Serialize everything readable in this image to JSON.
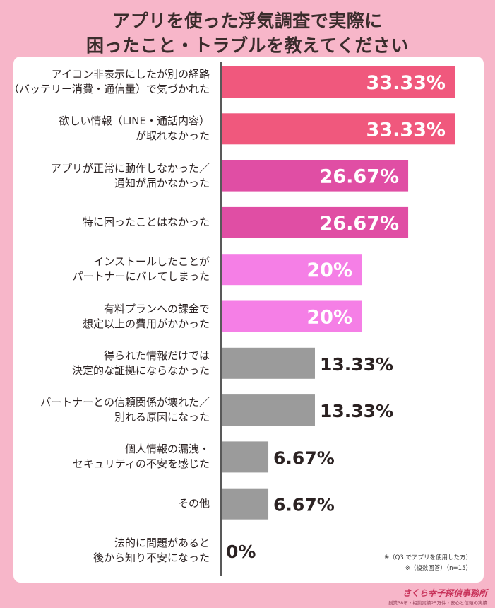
{
  "title": {
    "line1": "アプリを使った浮気調査で実際に",
    "line2": "困ったこと・トラブルを教えてください"
  },
  "chart_data": {
    "type": "bar",
    "orientation": "horizontal",
    "xlim": [
      0,
      33.33
    ],
    "categories": [
      [
        "アイコン非表示にしたが別の経路",
        "（バッテリー消費・通信量）で気づかれた"
      ],
      [
        "欲しい情報（LINE・通話内容）",
        "が取れなかった"
      ],
      [
        "アプリが正常に動作しなかった／",
        "通知が届かなかった"
      ],
      [
        "特に困ったことはなかった"
      ],
      [
        "インストールしたことが",
        "パートナーにバレてしまった"
      ],
      [
        "有料プランへの課金で",
        "想定以上の費用がかかった"
      ],
      [
        "得られた情報だけでは",
        "決定的な証拠にならなかった"
      ],
      [
        "パートナーとの信頼関係が壊れた／",
        "別れる原因になった"
      ],
      [
        "個人情報の漏洩・",
        "セキュリティの不安を感じた"
      ],
      [
        "その他"
      ],
      [
        "法的に問題があると",
        "後から知り不安になった"
      ]
    ],
    "values": [
      33.33,
      33.33,
      26.67,
      26.67,
      20,
      20,
      13.33,
      13.33,
      6.67,
      6.67,
      0
    ],
    "value_labels": [
      "33.33%",
      "33.33%",
      "26.67%",
      "26.67%",
      "20%",
      "20%",
      "13.33%",
      "13.33%",
      "6.67%",
      "6.67%",
      "0%"
    ],
    "colors": [
      "#f0587d",
      "#f0587d",
      "#e04ea4",
      "#e04ea4",
      "#f57fe6",
      "#f57fe6",
      "#9b9b9b",
      "#9b9b9b",
      "#9b9b9b",
      "#9b9b9b",
      "#9b9b9b"
    ],
    "label_inside_color": "#ffffff",
    "label_outside_color": "#2b2222"
  },
  "footnote": {
    "line1": "※（Q3 でアプリを使用した方）",
    "line2": "※（複数回答）（n=15）"
  },
  "logo": {
    "name": "さくら幸子探偵事務所",
    "tagline": "創業38年・相談実績25万件・安心と信頼の実績"
  }
}
